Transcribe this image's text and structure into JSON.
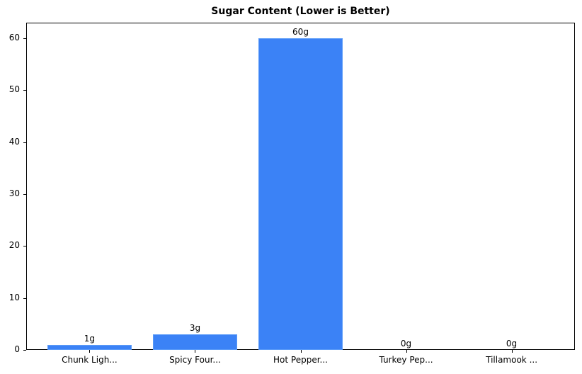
{
  "chart_data": {
    "type": "bar",
    "title": "Sugar Content (Lower is Better)",
    "xlabel": "",
    "ylabel": "",
    "categories": [
      "Chunk Ligh...",
      "Spicy Four...",
      "Hot Pepper...",
      "Turkey Pep...",
      "Tillamook ..."
    ],
    "values": [
      1,
      3,
      60,
      0,
      0
    ],
    "value_labels": [
      "1g",
      "3g",
      "60g",
      "0g",
      "0g"
    ],
    "ylim": [
      0,
      63
    ],
    "yticks": [
      0,
      10,
      20,
      30,
      40,
      50,
      60
    ],
    "grid": false,
    "legend": null,
    "bar_color": "#3b82f6"
  }
}
